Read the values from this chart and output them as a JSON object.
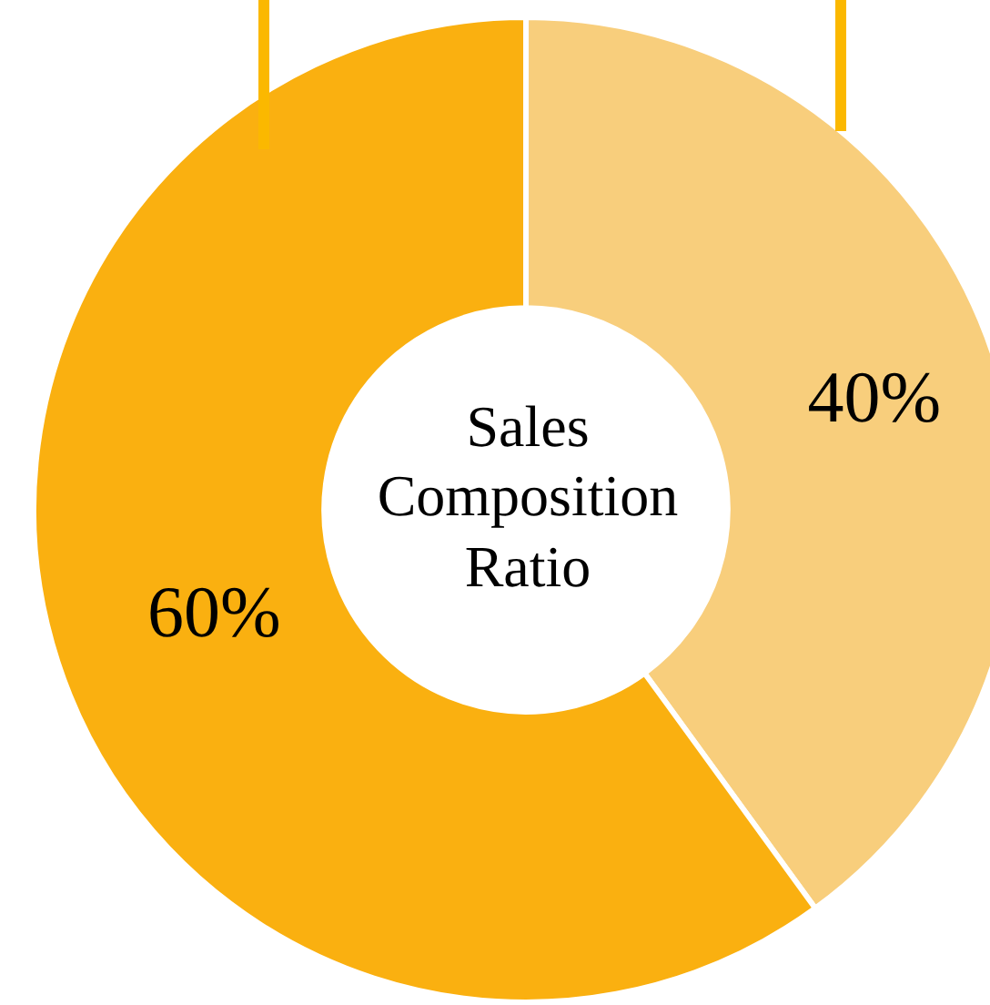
{
  "chart_data": {
    "type": "donut",
    "title": "Sales Composition Ratio",
    "categories": [
      null,
      null
    ],
    "values": [
      40,
      60
    ],
    "colors": [
      "#f8ce7c",
      "#fab010"
    ],
    "value_labels": [
      "40%",
      "60%"
    ],
    "legend": false
  }
}
